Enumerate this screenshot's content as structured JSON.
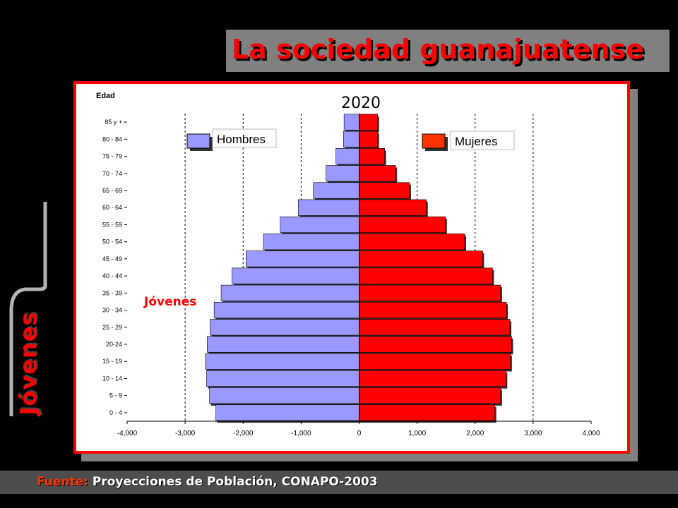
{
  "slide": {
    "title": "La sociedad guanajuatense",
    "side_label": "Jóvenes",
    "footer_label": "Fuente:",
    "footer_source": "Proyecciones de Población, CONAPO-2003",
    "colors": {
      "background": "#000000",
      "title": "#ff0000",
      "frame": "#ff0000"
    }
  },
  "chart_data": {
    "type": "bar",
    "orientation": "horizontal-population-pyramid",
    "title": "2020",
    "ylabel": "Edad",
    "categories": [
      "85 y +",
      "80 - 84",
      "75 - 79",
      "70 - 74",
      "65 - 69",
      "60 - 64",
      "55 - 59",
      "50 - 54",
      "45 - 49",
      "40 - 44",
      "35 - 39",
      "30 - 34",
      "25 - 29",
      "20-24",
      "15 - 19",
      "10 - 14",
      "5 - 9",
      "0 - 4"
    ],
    "series": [
      {
        "name": "Hombres",
        "color": "#9999ff",
        "values": [
          -260,
          -270,
          -400,
          -570,
          -790,
          -1050,
          -1360,
          -1650,
          -1950,
          -2190,
          -2380,
          -2500,
          -2570,
          -2620,
          -2650,
          -2630,
          -2580,
          -2470
        ]
      },
      {
        "name": "Mujeres",
        "color": "#ff0000",
        "values": [
          320,
          320,
          440,
          630,
          870,
          1160,
          1490,
          1820,
          2130,
          2300,
          2440,
          2540,
          2600,
          2630,
          2610,
          2530,
          2440,
          2340
        ]
      }
    ],
    "xlim": [
      -4000,
      4000
    ],
    "xticks": [
      "-4,000",
      "-3,000",
      "-2,000",
      "-1,000",
      "0",
      "1,000",
      "2,000",
      "3,000",
      "4,000"
    ],
    "xtick_values": [
      -4000,
      -3000,
      -2000,
      -1000,
      0,
      1000,
      2000,
      3000,
      4000
    ],
    "grid": "vertical dashed",
    "legend": {
      "hombres_label": "Hombres",
      "mujeres_label": "Mujeres",
      "placement": "top, both sides"
    },
    "annotation": "Jóvenes"
  }
}
